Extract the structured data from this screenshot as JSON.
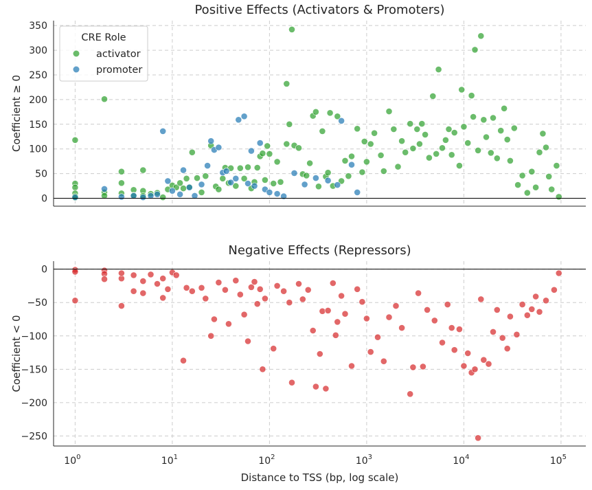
{
  "chart_data": [
    {
      "type": "scatter",
      "title": "Positive Effects (Activators & Promoters)",
      "xlabel": "",
      "ylabel": "Coefficient ≥ 0",
      "xscale": "log",
      "xlim": [
        0.6,
        180000
      ],
      "ylim": [
        -16,
        360
      ],
      "yticks": [
        0,
        50,
        100,
        150,
        200,
        250,
        300,
        350
      ],
      "grid": true,
      "legend": {
        "title": "CRE Role",
        "placement": "top-left"
      },
      "series": [
        {
          "name": "activator",
          "color": "#2ca02c",
          "points": [
            [
              1,
              118
            ],
            [
              1,
              30
            ],
            [
              1,
              22
            ],
            [
              1,
              10
            ],
            [
              1,
              4
            ],
            [
              1,
              1
            ],
            [
              2,
              201
            ],
            [
              2,
              12
            ],
            [
              2,
              5
            ],
            [
              3,
              54
            ],
            [
              3,
              31
            ],
            [
              3,
              10
            ],
            [
              4,
              17
            ],
            [
              4,
              6
            ],
            [
              5,
              57
            ],
            [
              5,
              15
            ],
            [
              5,
              5
            ],
            [
              6,
              9
            ],
            [
              7,
              11
            ],
            [
              8,
              2
            ],
            [
              9,
              18
            ],
            [
              10,
              26
            ],
            [
              11,
              22
            ],
            [
              12,
              31
            ],
            [
              13,
              20
            ],
            [
              14,
              40
            ],
            [
              15,
              23
            ],
            [
              16,
              93
            ],
            [
              18,
              41
            ],
            [
              20,
              12
            ],
            [
              22,
              45
            ],
            [
              25,
              107
            ],
            [
              28,
              24
            ],
            [
              30,
              18
            ],
            [
              33,
              40
            ],
            [
              35,
              62
            ],
            [
              38,
              31
            ],
            [
              40,
              61
            ],
            [
              45,
              25
            ],
            [
              50,
              61
            ],
            [
              55,
              40
            ],
            [
              60,
              63
            ],
            [
              65,
              20
            ],
            [
              70,
              33
            ],
            [
              75,
              62
            ],
            [
              80,
              85
            ],
            [
              85,
              91
            ],
            [
              90,
              37
            ],
            [
              95,
              106
            ],
            [
              100,
              90
            ],
            [
              110,
              30
            ],
            [
              120,
              74
            ],
            [
              130,
              33
            ],
            [
              150,
              110
            ],
            [
              160,
              150
            ],
            [
              170,
              342
            ],
            [
              180,
              107
            ],
            [
              200,
              102
            ],
            [
              220,
              49
            ],
            [
              240,
              46
            ],
            [
              150,
              232
            ],
            [
              260,
              71
            ],
            [
              280,
              167
            ],
            [
              300,
              175
            ],
            [
              320,
              24
            ],
            [
              350,
              136
            ],
            [
              380,
              44
            ],
            [
              400,
              52
            ],
            [
              420,
              173
            ],
            [
              450,
              25
            ],
            [
              500,
              166
            ],
            [
              550,
              35
            ],
            [
              600,
              76
            ],
            [
              650,
              45
            ],
            [
              700,
              85
            ],
            [
              800,
              141
            ],
            [
              900,
              53
            ],
            [
              950,
              115
            ],
            [
              1000,
              74
            ],
            [
              1100,
              110
            ],
            [
              1200,
              132
            ],
            [
              1400,
              87
            ],
            [
              1500,
              55
            ],
            [
              1700,
              176
            ],
            [
              1900,
              140
            ],
            [
              2100,
              64
            ],
            [
              2300,
              116
            ],
            [
              2500,
              93
            ],
            [
              2800,
              151
            ],
            [
              3000,
              101
            ],
            [
              3300,
              140
            ],
            [
              3500,
              110
            ],
            [
              3700,
              151
            ],
            [
              4000,
              129
            ],
            [
              4400,
              82
            ],
            [
              4800,
              207
            ],
            [
              5200,
              90
            ],
            [
              5500,
              261
            ],
            [
              6000,
              102
            ],
            [
              6500,
              118
            ],
            [
              7000,
              140
            ],
            [
              7500,
              88
            ],
            [
              8000,
              133
            ],
            [
              9000,
              66
            ],
            [
              9500,
              220
            ],
            [
              10000,
              145
            ],
            [
              11000,
              112
            ],
            [
              12000,
              208
            ],
            [
              12500,
              165
            ],
            [
              13000,
              301
            ],
            [
              14000,
              97
            ],
            [
              15000,
              329
            ],
            [
              16000,
              159
            ],
            [
              17000,
              124
            ],
            [
              19000,
              92
            ],
            [
              20000,
              163
            ],
            [
              22000,
              81
            ],
            [
              24000,
              137
            ],
            [
              26000,
              182
            ],
            [
              28000,
              119
            ],
            [
              30000,
              76
            ],
            [
              33000,
              142
            ],
            [
              36000,
              27
            ],
            [
              40000,
              46
            ],
            [
              45000,
              11
            ],
            [
              50000,
              54
            ],
            [
              55000,
              22
            ],
            [
              60000,
              93
            ],
            [
              65000,
              131
            ],
            [
              70000,
              103
            ],
            [
              75000,
              44
            ],
            [
              80000,
              18
            ],
            [
              90000,
              66
            ],
            [
              95000,
              3
            ]
          ]
        },
        {
          "name": "promoter",
          "color": "#1f77b4",
          "points": [
            [
              1,
              2
            ],
            [
              2,
              19
            ],
            [
              3,
              3
            ],
            [
              4,
              5
            ],
            [
              5,
              2
            ],
            [
              6,
              5
            ],
            [
              7,
              8
            ],
            [
              8,
              136
            ],
            [
              9,
              35
            ],
            [
              10,
              15
            ],
            [
              12,
              8
            ],
            [
              13,
              57
            ],
            [
              15,
              22
            ],
            [
              17,
              5
            ],
            [
              20,
              28
            ],
            [
              23,
              66
            ],
            [
              25,
              116
            ],
            [
              27,
              98
            ],
            [
              30,
              103
            ],
            [
              33,
              52
            ],
            [
              36,
              55
            ],
            [
              40,
              32
            ],
            [
              45,
              40
            ],
            [
              48,
              159
            ],
            [
              55,
              166
            ],
            [
              60,
              30
            ],
            [
              65,
              96
            ],
            [
              70,
              25
            ],
            [
              80,
              112
            ],
            [
              90,
              18
            ],
            [
              100,
              12
            ],
            [
              120,
              9
            ],
            [
              140,
              4
            ],
            [
              180,
              51
            ],
            [
              230,
              28
            ],
            [
              300,
              41
            ],
            [
              400,
              36
            ],
            [
              500,
              27
            ],
            [
              550,
              157
            ],
            [
              700,
              68
            ],
            [
              800,
              12
            ]
          ]
        }
      ]
    },
    {
      "type": "scatter",
      "title": "Negative Effects (Repressors)",
      "xlabel": "Distance to TSS (bp, log scale)",
      "ylabel": "Coefficient < 0",
      "xscale": "log",
      "xlim": [
        0.6,
        180000
      ],
      "xticks": [
        "10^0",
        "10^1",
        "10^2",
        "10^3",
        "10^4",
        "10^5"
      ],
      "ylim": [
        -265,
        12
      ],
      "yticks": [
        0,
        -50,
        -100,
        -150,
        -200,
        -250
      ],
      "grid": true,
      "series": [
        {
          "name": "",
          "color": "#d62728",
          "points": [
            [
              1,
              -1
            ],
            [
              1,
              -4
            ],
            [
              1,
              -47
            ],
            [
              2,
              -2
            ],
            [
              2,
              -7
            ],
            [
              2,
              -15
            ],
            [
              3,
              -55
            ],
            [
              3,
              -14
            ],
            [
              3,
              -6
            ],
            [
              4,
              -33
            ],
            [
              4,
              -9
            ],
            [
              5,
              -36
            ],
            [
              5,
              -18
            ],
            [
              6,
              -8
            ],
            [
              7,
              -22
            ],
            [
              8,
              -43
            ],
            [
              8,
              -14
            ],
            [
              9,
              -30
            ],
            [
              10,
              -5
            ],
            [
              11,
              -9
            ],
            [
              13,
              -137
            ],
            [
              14,
              -28
            ],
            [
              16,
              -33
            ],
            [
              20,
              -28
            ],
            [
              22,
              -44
            ],
            [
              25,
              -100
            ],
            [
              27,
              -75
            ],
            [
              30,
              -20
            ],
            [
              35,
              -31
            ],
            [
              38,
              -82
            ],
            [
              45,
              -17
            ],
            [
              50,
              -38
            ],
            [
              55,
              -68
            ],
            [
              60,
              -108
            ],
            [
              65,
              -27
            ],
            [
              70,
              -19
            ],
            [
              75,
              -52
            ],
            [
              80,
              -30
            ],
            [
              85,
              -150
            ],
            [
              90,
              -44
            ],
            [
              110,
              -119
            ],
            [
              120,
              -25
            ],
            [
              140,
              -33
            ],
            [
              160,
              -50
            ],
            [
              170,
              -170
            ],
            [
              200,
              -22
            ],
            [
              220,
              -45
            ],
            [
              250,
              -31
            ],
            [
              280,
              -92
            ],
            [
              300,
              -176
            ],
            [
              330,
              -127
            ],
            [
              350,
              -63
            ],
            [
              380,
              -179
            ],
            [
              400,
              -62
            ],
            [
              450,
              -21
            ],
            [
              480,
              -99
            ],
            [
              500,
              -79
            ],
            [
              550,
              -40
            ],
            [
              600,
              -67
            ],
            [
              700,
              -145
            ],
            [
              800,
              -30
            ],
            [
              900,
              -49
            ],
            [
              1000,
              -74
            ],
            [
              1100,
              -124
            ],
            [
              1300,
              -102
            ],
            [
              1500,
              -138
            ],
            [
              1700,
              -72
            ],
            [
              2000,
              -55
            ],
            [
              2300,
              -88
            ],
            [
              2800,
              -187
            ],
            [
              3000,
              -147
            ],
            [
              3400,
              -36
            ],
            [
              3800,
              -146
            ],
            [
              4200,
              -61
            ],
            [
              5000,
              -77
            ],
            [
              6000,
              -110
            ],
            [
              6800,
              -53
            ],
            [
              7500,
              -88
            ],
            [
              8000,
              -121
            ],
            [
              9000,
              -90
            ],
            [
              10000,
              -145
            ],
            [
              11000,
              -126
            ],
            [
              12000,
              -155
            ],
            [
              13000,
              -150
            ],
            [
              14000,
              -253
            ],
            [
              15000,
              -45
            ],
            [
              16000,
              -136
            ],
            [
              18000,
              -142
            ],
            [
              20000,
              -94
            ],
            [
              22000,
              -61
            ],
            [
              25000,
              -103
            ],
            [
              28000,
              -119
            ],
            [
              30000,
              -71
            ],
            [
              35000,
              -98
            ],
            [
              40000,
              -53
            ],
            [
              45000,
              -69
            ],
            [
              50000,
              -60
            ],
            [
              55000,
              -41
            ],
            [
              60000,
              -64
            ],
            [
              70000,
              -47
            ],
            [
              85000,
              -31
            ],
            [
              95000,
              -6
            ]
          ]
        }
      ]
    }
  ]
}
